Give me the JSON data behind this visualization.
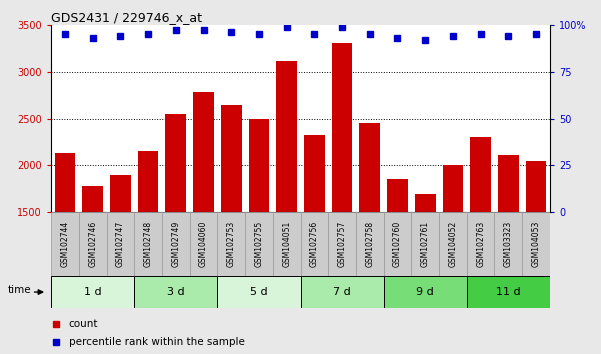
{
  "title": "GDS2431 / 229746_x_at",
  "samples": [
    "GSM102744",
    "GSM102746",
    "GSM102747",
    "GSM102748",
    "GSM102749",
    "GSM104060",
    "GSM102753",
    "GSM102755",
    "GSM104051",
    "GSM102756",
    "GSM102757",
    "GSM102758",
    "GSM102760",
    "GSM102761",
    "GSM104052",
    "GSM102763",
    "GSM103323",
    "GSM104053"
  ],
  "counts": [
    2130,
    1780,
    1900,
    2150,
    2550,
    2780,
    2640,
    2500,
    3110,
    2330,
    3310,
    2450,
    1855,
    1700,
    2010,
    2300,
    2110,
    2045
  ],
  "percentile_ranks": [
    95,
    93,
    94,
    95,
    97,
    97,
    96,
    95,
    99,
    95,
    99,
    95,
    93,
    92,
    94,
    95,
    94,
    95
  ],
  "group_labels": [
    "1 d",
    "3 d",
    "5 d",
    "7 d",
    "9 d",
    "11 d"
  ],
  "group_sizes": [
    3,
    3,
    3,
    3,
    3,
    3
  ],
  "group_colors": [
    "#d9f5d9",
    "#aaeaaa",
    "#d9f5d9",
    "#aaeaaa",
    "#77dd77",
    "#44cc44"
  ],
  "ylim_left": [
    1500,
    3500
  ],
  "ylim_right": [
    0,
    100
  ],
  "yticks_left": [
    1500,
    2000,
    2500,
    3000,
    3500
  ],
  "yticks_right": [
    0,
    25,
    50,
    75,
    100
  ],
  "bar_color": "#cc0000",
  "dot_color": "#0000cc",
  "fig_bg": "#e8e8e8",
  "plot_bg": "#ffffff",
  "sample_box_color": "#cccccc",
  "sample_box_edge": "#999999",
  "label_count": "count",
  "label_pct": "percentile rank within the sample",
  "time_label": "time"
}
